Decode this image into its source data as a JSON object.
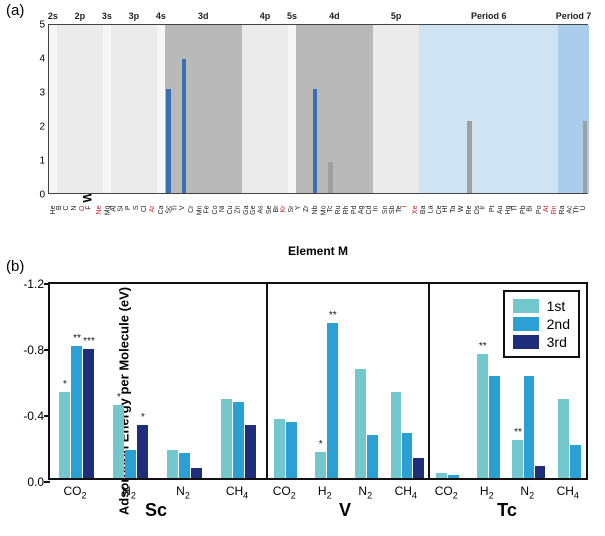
{
  "panel_a": {
    "label": "(a)",
    "type": "bar",
    "ylabel": "Working Capacity (mmol/g)",
    "xlabel": "Element M",
    "ylim": [
      0,
      5
    ],
    "ytick_step": 1,
    "axis_color": "#444444",
    "tick_fontsize": 10,
    "label_fontsize": 12,
    "blue_bar_color": "#3a6fb0",
    "gray_bar_color": "#a0a0a0",
    "elements": [
      "He",
      "B",
      "C",
      "N",
      "O",
      "F",
      "Ne",
      "Mg",
      "Al",
      "Si",
      "P",
      "S",
      "Cl",
      "Ar",
      "Ca",
      "Sc",
      "Ti",
      "V",
      "Cr",
      "Mn",
      "Fe",
      "Co",
      "Ni",
      "Cu",
      "Zn",
      "Ga",
      "Ge",
      "As",
      "Se",
      "Br",
      "Kr",
      "Sr",
      "Y",
      "Zr",
      "Nb",
      "Mo",
      "Tc",
      "Ru",
      "Rh",
      "Pd",
      "Ag",
      "Cd",
      "In",
      "Sn",
      "Sb",
      "Te",
      "I",
      "Xe",
      "Ba",
      "La",
      "Ce",
      "Hf",
      "Ta",
      "W",
      "Re",
      "Os",
      "Ir",
      "Pt",
      "Au",
      "Hg",
      "Tl",
      "Pb",
      "Bi",
      "Po",
      "At",
      "Rn",
      "Ra",
      "Ac",
      "Th",
      "U"
    ],
    "red_elements": [
      "O",
      "Ne",
      "Ar",
      "Kr",
      "Xe",
      "I",
      "Rn",
      "At"
    ],
    "bars": [
      {
        "el": "Sc",
        "h": 3.05,
        "colorKey": "blue_bar_color"
      },
      {
        "el": "V",
        "h": 3.95,
        "colorKey": "blue_bar_color"
      },
      {
        "el": "Nb",
        "h": 3.05,
        "colorKey": "blue_bar_color"
      },
      {
        "el": "Tc",
        "h": 0.92,
        "colorKey": "gray_bar_color"
      },
      {
        "el": "Re",
        "h": 2.12,
        "colorKey": "gray_bar_color"
      },
      {
        "el": "U",
        "h": 2.12,
        "colorKey": "gray_bar_color"
      }
    ],
    "regions": [
      {
        "label": "2s",
        "start": 0,
        "end": 1,
        "color": "#f6f6f6"
      },
      {
        "label": "2p",
        "start": 1,
        "end": 7,
        "color": "#ebebeb"
      },
      {
        "label": "3s",
        "start": 7,
        "end": 8,
        "color": "#f6f6f6"
      },
      {
        "label": "3p",
        "start": 8,
        "end": 14,
        "color": "#ebebeb"
      },
      {
        "label": "4s",
        "start": 14,
        "end": 15,
        "color": "#f6f6f6"
      },
      {
        "label": "3d",
        "start": 15,
        "end": 25,
        "color": "#b9b9b9"
      },
      {
        "label": "4p",
        "start": 25,
        "end": 31,
        "color": "#ebebeb"
      },
      {
        "label": "5s",
        "start": 31,
        "end": 32,
        "color": "#f6f6f6"
      },
      {
        "label": "4d",
        "start": 32,
        "end": 42,
        "color": "#b9b9b9"
      },
      {
        "label": "5p",
        "start": 42,
        "end": 48,
        "color": "#ebebeb"
      },
      {
        "label": "Period 6",
        "start": 48,
        "end": 66,
        "color": "#cfe3f2"
      },
      {
        "label": "Period 7",
        "start": 66,
        "end": 70,
        "color": "#a9cdea"
      }
    ]
  },
  "panel_b": {
    "label": "(b)",
    "type": "grouped-bar",
    "ylabel": "Adsorption Energy per Molecule (eV)",
    "ylim": [
      0,
      -1.2
    ],
    "yticks": [
      0.0,
      -0.4,
      -0.8,
      -1.2
    ],
    "ytick_labels": [
      "0.0",
      "-0.4",
      "-0.8",
      "-1.2"
    ],
    "axis_color": "#111111",
    "colors": {
      "1st": "#72c8cd",
      "2nd": "#2aa0d4",
      "3rd": "#1f2e7a"
    },
    "legend": [
      {
        "key": "1st",
        "label": "1st"
      },
      {
        "key": "2nd",
        "label": "2nd"
      },
      {
        "key": "3rd",
        "label": "3rd"
      }
    ],
    "segments": [
      {
        "title": "Sc",
        "width": 0.4,
        "molecules": [
          {
            "name": "CO2",
            "html": "CO<sub>2</sub>",
            "bars": [
              {
                "s": "1st",
                "v": -0.52,
                "star": "*"
              },
              {
                "s": "2nd",
                "v": -0.8,
                "star": "**"
              },
              {
                "s": "3rd",
                "v": -0.78,
                "star": "***"
              }
            ]
          },
          {
            "name": "H2",
            "html": "H<sub>2</sub>",
            "bars": [
              {
                "s": "1st",
                "v": -0.44,
                "star": "*"
              },
              {
                "s": "2nd",
                "v": -0.17
              },
              {
                "s": "3rd",
                "v": -0.32,
                "star": "*"
              }
            ]
          },
          {
            "name": "N2",
            "html": "N<sub>2</sub>",
            "bars": [
              {
                "s": "1st",
                "v": -0.17
              },
              {
                "s": "2nd",
                "v": -0.15
              },
              {
                "s": "3rd",
                "v": -0.06
              }
            ]
          },
          {
            "name": "CH4",
            "html": "CH<sub>4</sub>",
            "bars": [
              {
                "s": "1st",
                "v": -0.48
              },
              {
                "s": "2nd",
                "v": -0.46
              },
              {
                "s": "3rd",
                "v": -0.32
              }
            ]
          }
        ]
      },
      {
        "title": "V",
        "width": 0.3,
        "molecules": [
          {
            "name": "CO2",
            "html": "CO<sub>2</sub>",
            "bars": [
              {
                "s": "1st",
                "v": -0.36
              },
              {
                "s": "2nd",
                "v": -0.34
              }
            ]
          },
          {
            "name": "H2",
            "html": "H<sub>2</sub>",
            "bars": [
              {
                "s": "1st",
                "v": -0.16,
                "star": "*"
              },
              {
                "s": "2nd",
                "v": -0.94,
                "star": "**"
              }
            ]
          },
          {
            "name": "N2",
            "html": "N<sub>2</sub>",
            "bars": [
              {
                "s": "1st",
                "v": -0.66
              },
              {
                "s": "2nd",
                "v": -0.26
              }
            ]
          },
          {
            "name": "CH4",
            "html": "CH<sub>4</sub>",
            "bars": [
              {
                "s": "1st",
                "v": -0.52
              },
              {
                "s": "2nd",
                "v": -0.27
              },
              {
                "s": "3rd",
                "v": -0.12
              }
            ]
          }
        ]
      },
      {
        "title": "Tc",
        "width": 0.3,
        "molecules": [
          {
            "name": "CO2",
            "html": "CO<sub>2</sub>",
            "bars": [
              {
                "s": "1st",
                "v": -0.03
              },
              {
                "s": "2nd",
                "v": -0.02
              }
            ]
          },
          {
            "name": "H2",
            "html": "H<sub>2</sub>",
            "bars": [
              {
                "s": "1st",
                "v": -0.75,
                "star": "**"
              },
              {
                "s": "2nd",
                "v": -0.62
              }
            ]
          },
          {
            "name": "N2",
            "html": "N<sub>2</sub>",
            "bars": [
              {
                "s": "1st",
                "v": -0.23,
                "star": "**"
              },
              {
                "s": "2nd",
                "v": -0.62
              },
              {
                "s": "3rd",
                "v": -0.07
              }
            ]
          },
          {
            "name": "CH4",
            "html": "CH<sub>4</sub>",
            "bars": [
              {
                "s": "1st",
                "v": -0.48
              },
              {
                "s": "2nd",
                "v": -0.2
              }
            ]
          }
        ]
      }
    ]
  }
}
